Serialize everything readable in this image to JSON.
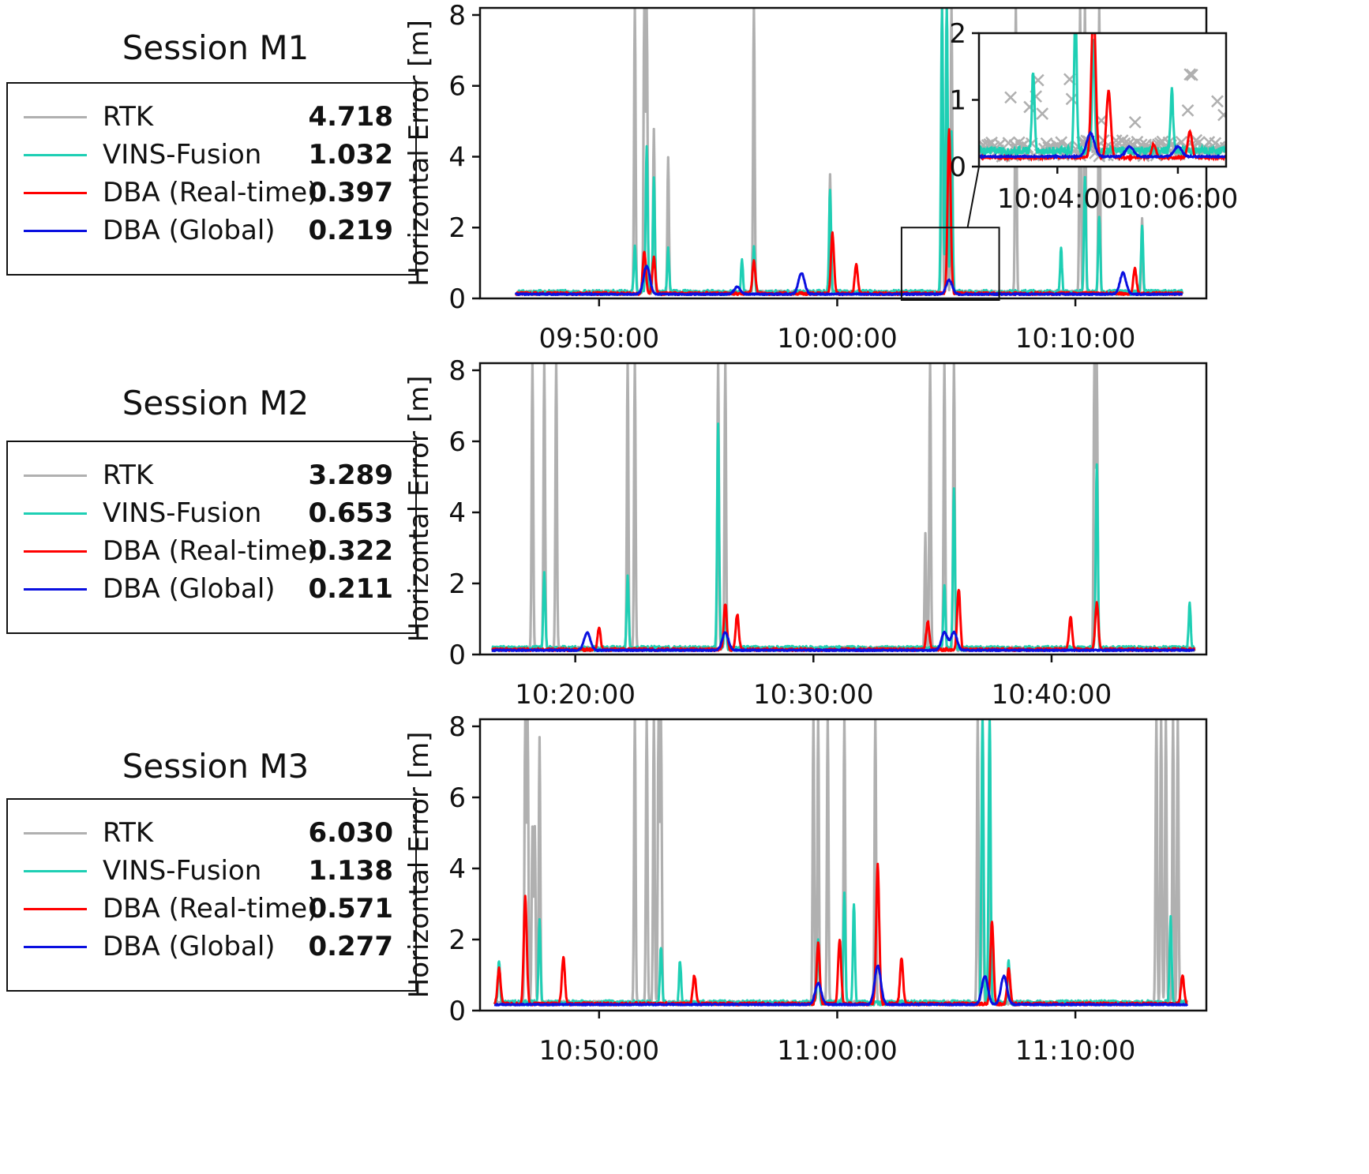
{
  "chart_data": [
    {
      "type": "line",
      "session_title": "Session M1",
      "ylabel": "Horizontal Error [m]",
      "ylim": [
        0,
        8.2
      ],
      "yticks": [
        "0",
        "2",
        "4",
        "6",
        "8"
      ],
      "xticks": [
        "09:50:00",
        "10:00:00",
        "10:10:00"
      ],
      "xlim_minutes": [
        -5,
        25.5
      ],
      "xtick_minutes": [
        0,
        10,
        20
      ],
      "legend": [
        {
          "name": "RTK",
          "color": "#b0b0b0",
          "value": "4.718"
        },
        {
          "name": "VINS-Fusion",
          "color": "#1ecfb4",
          "value": "1.032"
        },
        {
          "name": "DBA (Real-time)",
          "color": "#ff0000",
          "value": "0.397"
        },
        {
          "name": "DBA (Global)",
          "color": "#0a10e0",
          "value": "0.219"
        }
      ],
      "t_range": [
        -3.5,
        24.5
      ],
      "base_level": 0.1,
      "spikes": {
        "rtk": [
          [
            1.5,
            8.2
          ],
          [
            1.9,
            8.2
          ],
          [
            2.0,
            8.2
          ],
          [
            2.3,
            4.6
          ],
          [
            2.9,
            3.8
          ],
          [
            6.5,
            8.2
          ],
          [
            9.7,
            3.3
          ],
          [
            14.4,
            8.2
          ],
          [
            14.6,
            8.2
          ],
          [
            14.8,
            8.2
          ],
          [
            17.5,
            8.2
          ],
          [
            20.2,
            8.2
          ],
          [
            20.4,
            8.2
          ],
          [
            21.0,
            8.2
          ],
          [
            22.8,
            2.1
          ]
        ],
        "vins": [
          [
            1.5,
            1.3
          ],
          [
            2.0,
            4.1
          ],
          [
            2.3,
            3.2
          ],
          [
            2.9,
            1.2
          ],
          [
            6.0,
            0.9
          ],
          [
            6.5,
            1.3
          ],
          [
            9.7,
            2.9
          ],
          [
            14.4,
            8.2
          ],
          [
            14.6,
            8.2
          ],
          [
            14.8,
            4.6
          ],
          [
            19.4,
            1.2
          ],
          [
            20.4,
            3.2
          ],
          [
            21.0,
            2.2
          ],
          [
            22.8,
            1.9
          ]
        ],
        "dba": [
          [
            1.9,
            1.2
          ],
          [
            2.3,
            1.0
          ],
          [
            6.5,
            0.9
          ],
          [
            9.8,
            1.7
          ],
          [
            10.8,
            0.8
          ],
          [
            14.7,
            4.6
          ],
          [
            22.5,
            0.7
          ]
        ],
        "glob": [
          [
            2.0,
            0.8
          ],
          [
            5.8,
            0.2
          ],
          [
            8.5,
            0.6
          ],
          [
            14.7,
            0.4
          ],
          [
            22.0,
            0.6
          ]
        ]
      },
      "inset": {
        "ylim": [
          0,
          2
        ],
        "yticks": [
          "0",
          "1",
          "2"
        ],
        "xticks": [
          "10:04:00",
          "10:06:00"
        ],
        "xlim_minutes": [
          12.7,
          16.8
        ],
        "xtick_minutes": [
          14,
          16
        ]
      }
    },
    {
      "type": "line",
      "session_title": "Session M2",
      "ylabel": "Horizontal Error [m]",
      "ylim": [
        0,
        8.2
      ],
      "yticks": [
        "0",
        "2",
        "4",
        "6",
        "8"
      ],
      "xticks": [
        "10:20:00",
        "10:30:00",
        "10:40:00"
      ],
      "xlim_minutes": [
        -4,
        26.5
      ],
      "xtick_minutes": [
        0,
        10,
        20
      ],
      "legend": [
        {
          "name": "RTK",
          "color": "#b0b0b0",
          "value": "3.289"
        },
        {
          "name": "VINS-Fusion",
          "color": "#1ecfb4",
          "value": "0.653"
        },
        {
          "name": "DBA (Real-time)",
          "color": "#ff0000",
          "value": "0.322"
        },
        {
          "name": "DBA (Global)",
          "color": "#0a10e0",
          "value": "0.211"
        }
      ],
      "t_range": [
        -3.5,
        26.0
      ],
      "base_level": 0.1,
      "spikes": {
        "rtk": [
          [
            -1.8,
            8.2
          ],
          [
            -1.3,
            8.2
          ],
          [
            -0.8,
            8.2
          ],
          [
            2.2,
            8.2
          ],
          [
            2.5,
            8.2
          ],
          [
            6.0,
            8.2
          ],
          [
            6.3,
            8.2
          ],
          [
            14.7,
            3.2
          ],
          [
            14.9,
            8.2
          ],
          [
            15.5,
            8.2
          ],
          [
            15.9,
            8.2
          ],
          [
            21.8,
            8.2
          ],
          [
            21.9,
            8.2
          ]
        ],
        "vins": [
          [
            -1.3,
            2.1
          ],
          [
            2.2,
            2.0
          ],
          [
            6.0,
            6.3
          ],
          [
            6.3,
            1.1
          ],
          [
            15.5,
            1.8
          ],
          [
            15.9,
            4.5
          ],
          [
            21.9,
            5.2
          ],
          [
            25.8,
            1.3
          ]
        ],
        "dba": [
          [
            1.0,
            0.6
          ],
          [
            6.3,
            1.3
          ],
          [
            6.8,
            1.0
          ],
          [
            14.8,
            0.8
          ],
          [
            16.1,
            1.7
          ],
          [
            20.8,
            0.9
          ],
          [
            21.9,
            1.3
          ]
        ],
        "glob": [
          [
            0.5,
            0.5
          ],
          [
            6.3,
            0.5
          ],
          [
            15.5,
            0.5
          ],
          [
            15.9,
            0.5
          ]
        ]
      }
    },
    {
      "type": "line",
      "session_title": "Session M3",
      "ylabel": "Horizontal Error [m]",
      "ylim": [
        0,
        8.2
      ],
      "yticks": [
        "0",
        "2",
        "4",
        "6",
        "8"
      ],
      "xticks": [
        "10:50:00",
        "11:00:00",
        "11:10:00"
      ],
      "xlim_minutes": [
        -5,
        25.5
      ],
      "xtick_minutes": [
        0,
        10,
        20
      ],
      "legend": [
        {
          "name": "RTK",
          "color": "#b0b0b0",
          "value": "6.030"
        },
        {
          "name": "VINS-Fusion",
          "color": "#1ecfb4",
          "value": "1.138"
        },
        {
          "name": "DBA (Real-time)",
          "color": "#ff0000",
          "value": "0.571"
        },
        {
          "name": "DBA (Global)",
          "color": "#0a10e0",
          "value": "0.277"
        }
      ],
      "t_range": [
        -4.4,
        24.7
      ],
      "base_level": 0.15,
      "spikes": {
        "rtk": [
          [
            -3.1,
            8.2
          ],
          [
            -3.0,
            8.2
          ],
          [
            -2.8,
            4.9
          ],
          [
            -2.7,
            4.9
          ],
          [
            -2.5,
            7.5
          ],
          [
            1.5,
            8.2
          ],
          [
            2.0,
            8.2
          ],
          [
            2.3,
            8.2
          ],
          [
            2.5,
            8.2
          ],
          [
            2.6,
            8.2
          ],
          [
            9.0,
            8.2
          ],
          [
            9.2,
            8.2
          ],
          [
            9.6,
            8.2
          ],
          [
            10.3,
            8.2
          ],
          [
            11.6,
            8.2
          ],
          [
            15.9,
            8.2
          ],
          [
            16.1,
            8.2
          ],
          [
            16.4,
            8.2
          ],
          [
            23.4,
            8.2
          ],
          [
            23.6,
            8.2
          ],
          [
            23.8,
            8.2
          ],
          [
            24.1,
            8.2
          ],
          [
            24.3,
            8.2
          ]
        ],
        "vins": [
          [
            -4.2,
            1.2
          ],
          [
            -2.5,
            2.3
          ],
          [
            2.6,
            1.6
          ],
          [
            3.4,
            1.2
          ],
          [
            9.2,
            1.8
          ],
          [
            10.3,
            3.1
          ],
          [
            10.7,
            2.8
          ],
          [
            16.1,
            8.2
          ],
          [
            16.4,
            8.2
          ],
          [
            17.2,
            1.2
          ],
          [
            24.0,
            2.4
          ]
        ],
        "dba": [
          [
            -4.2,
            1.0
          ],
          [
            -3.1,
            3.0
          ],
          [
            -1.5,
            1.3
          ],
          [
            4.0,
            0.8
          ],
          [
            9.2,
            1.7
          ],
          [
            10.1,
            1.8
          ],
          [
            11.7,
            3.9
          ],
          [
            12.7,
            1.3
          ],
          [
            16.5,
            2.3
          ],
          [
            17.2,
            1.0
          ],
          [
            24.5,
            0.8
          ]
        ],
        "glob": [
          [
            9.2,
            0.6
          ],
          [
            11.7,
            1.1
          ],
          [
            16.2,
            0.8
          ],
          [
            17.0,
            0.8
          ]
        ]
      }
    }
  ]
}
